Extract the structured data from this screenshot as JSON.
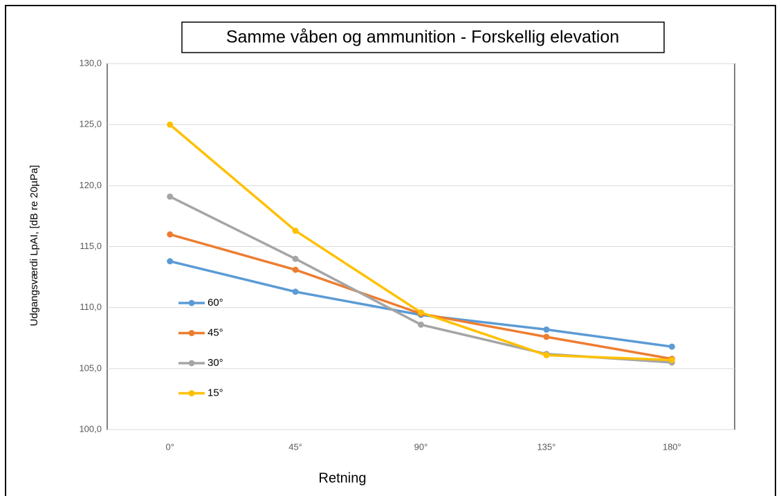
{
  "chart_data": {
    "type": "line",
    "title": "Samme våben og ammunition - Forskellig elevation",
    "x_label": "Retning",
    "y_label": "Udgangsværdi LpAI, [dB re 20µPa]",
    "categories": [
      "0°",
      "45°",
      "90°",
      "135°",
      "180°"
    ],
    "series": [
      {
        "name": "60°",
        "color": "#5b9bd5",
        "values": [
          113.8,
          111.3,
          109.4,
          108.2,
          106.8
        ]
      },
      {
        "name": "45°",
        "color": "#ed7d31",
        "values": [
          116.0,
          113.1,
          109.5,
          107.6,
          105.8
        ]
      },
      {
        "name": "30°",
        "color": "#a5a5a5",
        "values": [
          119.1,
          114.0,
          108.6,
          106.2,
          105.5
        ]
      },
      {
        "name": "15°",
        "color": "#ffc000",
        "values": [
          125.0,
          116.3,
          109.6,
          106.1,
          105.7
        ]
      }
    ],
    "ylim": [
      100,
      130
    ],
    "yticks": [
      {
        "value": 100,
        "label": "100,0"
      },
      {
        "value": 105,
        "label": "105,0"
      },
      {
        "value": 110,
        "label": "110,0"
      },
      {
        "value": 115,
        "label": "115,0"
      },
      {
        "value": 120,
        "label": "120,0"
      },
      {
        "value": 125,
        "label": "125,0"
      },
      {
        "value": 130,
        "label": "130,0"
      }
    ],
    "grid": true,
    "legend": "center-left"
  }
}
